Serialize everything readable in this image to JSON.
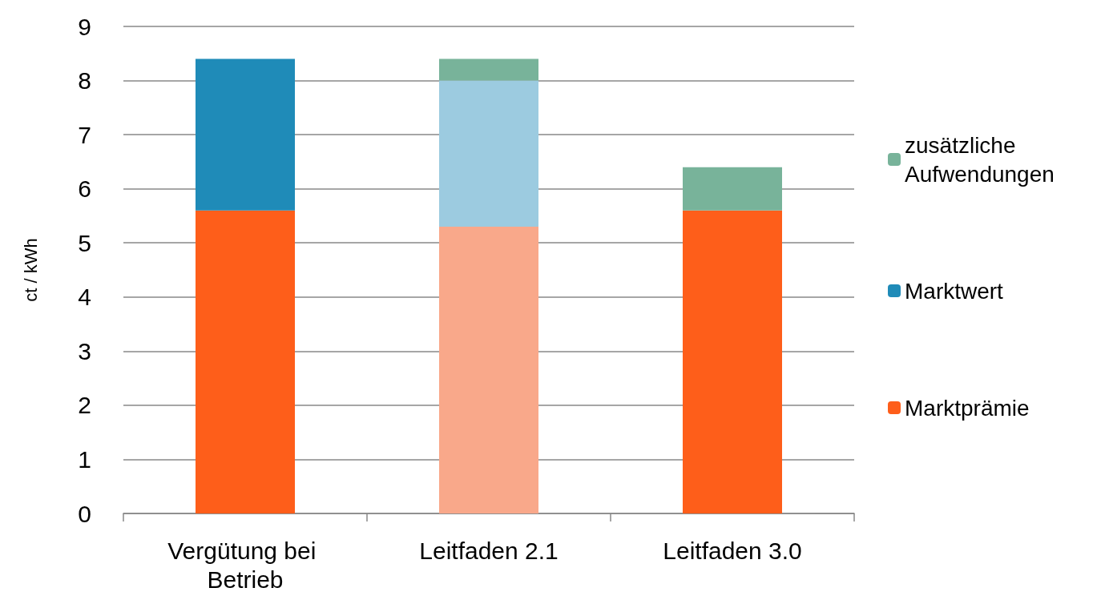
{
  "chart_data": {
    "type": "bar",
    "stacked": true,
    "ylabel": "ct / kWh",
    "categories": [
      "Vergütung bei Betrieb",
      "Leitfaden 2.1",
      "Leitfaden 3.0"
    ],
    "series": [
      {
        "name": "Marktprämie",
        "color": "#fe5e1a",
        "colors": [
          "#fe5e1a",
          "#f9a88a",
          "#fe5e1a"
        ],
        "values": [
          5.6,
          5.3,
          5.6
        ]
      },
      {
        "name": "Marktwert",
        "color": "#1f8bb8",
        "colors": [
          "#1f8bb8",
          "#9ccbe0",
          "#1f8bb8"
        ],
        "values": [
          2.8,
          2.7,
          null
        ]
      },
      {
        "name": "zusätzliche Aufwendungen",
        "color": "#78b39a",
        "colors": [
          "#78b39a",
          "#78b39a",
          "#78b39a"
        ],
        "values": [
          null,
          0.4,
          0.8
        ]
      }
    ],
    "ylim": [
      0,
      9
    ],
    "yticks": [
      0,
      1,
      2,
      3,
      4,
      5,
      6,
      7,
      8,
      9
    ],
    "grid": "y",
    "legend": "right"
  }
}
